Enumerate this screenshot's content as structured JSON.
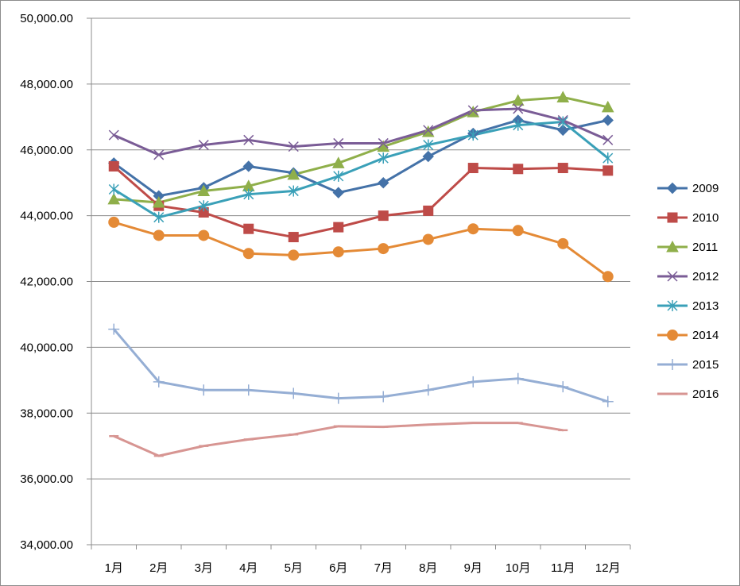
{
  "chart_data": {
    "type": "line",
    "title": "",
    "xlabel": "",
    "ylabel": "",
    "categories": [
      "1月",
      "2月",
      "3月",
      "4月",
      "5月",
      "6月",
      "7月",
      "8月",
      "9月",
      "10月",
      "11月",
      "12月"
    ],
    "ylim": [
      34000,
      50000
    ],
    "yticks": [
      34000,
      36000,
      38000,
      40000,
      42000,
      44000,
      46000,
      48000,
      50000
    ],
    "ytick_labels": [
      "34,000.00",
      "36,000.00",
      "38,000.00",
      "40,000.00",
      "42,000.00",
      "44,000.00",
      "46,000.00",
      "48,000.00",
      "50,000.00"
    ],
    "grid": "horizontal",
    "legend_position": "right",
    "series": [
      {
        "name": "2009",
        "color": "#4472a8",
        "marker": "diamond",
        "values": [
          45600,
          44600,
          44850,
          45500,
          45300,
          44700,
          45000,
          45800,
          46500,
          46900,
          46600,
          46900
        ]
      },
      {
        "name": "2010",
        "color": "#be4b48",
        "marker": "square",
        "values": [
          45500,
          44300,
          44100,
          43600,
          43350,
          43650,
          44000,
          44150,
          45450,
          45420,
          45450,
          45370
        ]
      },
      {
        "name": "2011",
        "color": "#8faf4a",
        "marker": "triangle",
        "values": [
          44500,
          44400,
          44750,
          44900,
          45250,
          45600,
          46100,
          46550,
          47150,
          47500,
          47600,
          47300
        ]
      },
      {
        "name": "2012",
        "color": "#7a5c96",
        "marker": "x",
        "values": [
          46450,
          45850,
          46150,
          46300,
          46100,
          46200,
          46200,
          46600,
          47200,
          47250,
          46900,
          46300
        ]
      },
      {
        "name": "2013",
        "color": "#3aa0b8",
        "marker": "asterisk",
        "values": [
          44800,
          43950,
          44300,
          44650,
          44750,
          45200,
          45750,
          46150,
          46450,
          46750,
          46850,
          45750
        ]
      },
      {
        "name": "2014",
        "color": "#e48a36",
        "marker": "circle",
        "values": [
          43800,
          43400,
          43400,
          42850,
          42800,
          42900,
          43000,
          43280,
          43600,
          43550,
          43150,
          42150
        ]
      },
      {
        "name": "2015",
        "color": "#95aed4",
        "marker": "plus",
        "values": [
          40550,
          38950,
          38700,
          38700,
          38600,
          38450,
          38500,
          38700,
          38950,
          39050,
          38800,
          38350
        ]
      },
      {
        "name": "2016",
        "color": "#d79592",
        "marker": "dash",
        "values": [
          37300,
          36700,
          37000,
          37200,
          37350,
          37600,
          37580,
          37650,
          37700,
          37700,
          37480,
          null
        ]
      }
    ]
  }
}
